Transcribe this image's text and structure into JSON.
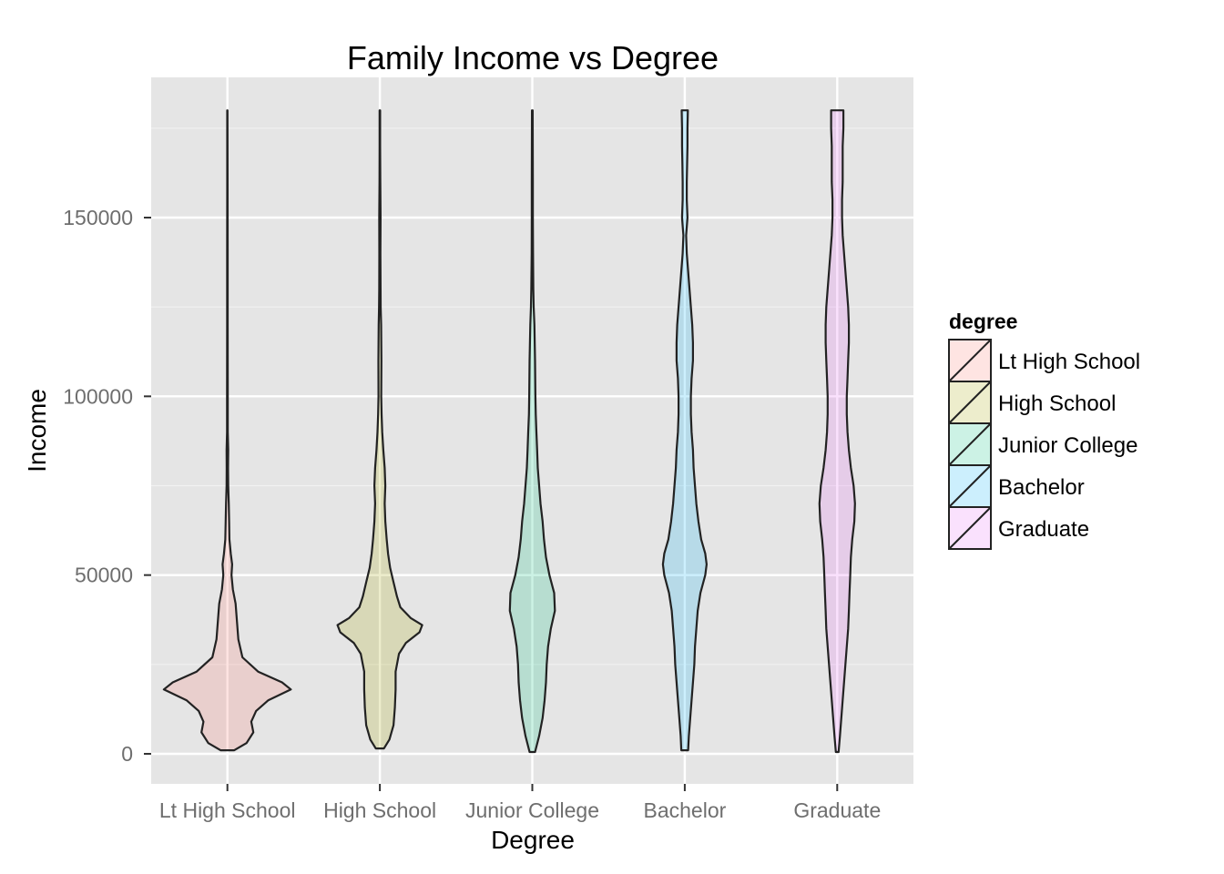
{
  "chart_data": {
    "type": "violin",
    "title": "Family Income vs Degree",
    "xlabel": "Degree",
    "ylabel": "Income",
    "categories": [
      "Lt High School",
      "High School",
      "Junior College",
      "Bachelor",
      "Graduate"
    ],
    "ylim": [
      -8000,
      182000
    ],
    "yticks": [
      0,
      50000,
      100000,
      150000
    ],
    "grid": true,
    "legend": {
      "title": "degree",
      "position": "right"
    },
    "series": [
      {
        "name": "Lt High School",
        "color": "#F8766D",
        "min": 1000,
        "max": 180000,
        "profile": [
          [
            1000,
            0.1
          ],
          [
            3000,
            0.28
          ],
          [
            6000,
            0.38
          ],
          [
            9000,
            0.35
          ],
          [
            12000,
            0.42
          ],
          [
            15000,
            0.6
          ],
          [
            18000,
            0.93
          ],
          [
            20000,
            0.8
          ],
          [
            23000,
            0.45
          ],
          [
            27000,
            0.22
          ],
          [
            32000,
            0.16
          ],
          [
            37000,
            0.14
          ],
          [
            42000,
            0.12
          ],
          [
            46000,
            0.08
          ],
          [
            50000,
            0.06
          ],
          [
            53000,
            0.07
          ],
          [
            56000,
            0.05
          ],
          [
            60000,
            0.03
          ],
          [
            65000,
            0.025
          ],
          [
            70000,
            0.02
          ],
          [
            75000,
            0.012
          ],
          [
            80000,
            0.01
          ],
          [
            85000,
            0.012
          ],
          [
            90000,
            0.006
          ],
          [
            100000,
            0.005
          ],
          [
            120000,
            0.004
          ],
          [
            140000,
            0.004
          ],
          [
            160000,
            0.003
          ],
          [
            180000,
            0.002
          ]
        ]
      },
      {
        "name": "High School",
        "color": "#A3A500",
        "min": 1500,
        "max": 180000,
        "profile": [
          [
            1500,
            0.06
          ],
          [
            4000,
            0.14
          ],
          [
            8000,
            0.2
          ],
          [
            13000,
            0.22
          ],
          [
            18000,
            0.23
          ],
          [
            23000,
            0.23
          ],
          [
            28000,
            0.28
          ],
          [
            31000,
            0.38
          ],
          [
            34000,
            0.58
          ],
          [
            36000,
            0.62
          ],
          [
            38000,
            0.45
          ],
          [
            41000,
            0.3
          ],
          [
            44000,
            0.25
          ],
          [
            48000,
            0.2
          ],
          [
            52000,
            0.15
          ],
          [
            56000,
            0.12
          ],
          [
            60000,
            0.1
          ],
          [
            65000,
            0.08
          ],
          [
            70000,
            0.07
          ],
          [
            75000,
            0.08
          ],
          [
            80000,
            0.07
          ],
          [
            85000,
            0.05
          ],
          [
            90000,
            0.035
          ],
          [
            95000,
            0.025
          ],
          [
            100000,
            0.02
          ],
          [
            110000,
            0.022
          ],
          [
            120000,
            0.018
          ],
          [
            125000,
            0.012
          ],
          [
            130000,
            0.01
          ],
          [
            140000,
            0.008
          ],
          [
            150000,
            0.01
          ],
          [
            160000,
            0.006
          ],
          [
            170000,
            0.004
          ],
          [
            180000,
            0.004
          ]
        ]
      },
      {
        "name": "Junior College",
        "color": "#00BF7D",
        "min": 500,
        "max": 180000,
        "profile": [
          [
            500,
            0.04
          ],
          [
            5000,
            0.1
          ],
          [
            10000,
            0.15
          ],
          [
            15000,
            0.18
          ],
          [
            20000,
            0.2
          ],
          [
            25000,
            0.21
          ],
          [
            30000,
            0.23
          ],
          [
            35000,
            0.27
          ],
          [
            40000,
            0.33
          ],
          [
            45000,
            0.32
          ],
          [
            50000,
            0.25
          ],
          [
            55000,
            0.2
          ],
          [
            60000,
            0.17
          ],
          [
            65000,
            0.15
          ],
          [
            70000,
            0.12
          ],
          [
            75000,
            0.1
          ],
          [
            80000,
            0.08
          ],
          [
            85000,
            0.07
          ],
          [
            90000,
            0.06
          ],
          [
            95000,
            0.05
          ],
          [
            100000,
            0.045
          ],
          [
            110000,
            0.04
          ],
          [
            120000,
            0.03
          ],
          [
            125000,
            0.02
          ],
          [
            130000,
            0.015
          ],
          [
            140000,
            0.01
          ],
          [
            150000,
            0.008
          ],
          [
            160000,
            0.008
          ],
          [
            170000,
            0.006
          ],
          [
            180000,
            0.005
          ]
        ]
      },
      {
        "name": "Bachelor",
        "color": "#00B0F6",
        "min": 1000,
        "max": 180000,
        "profile": [
          [
            1000,
            0.05
          ],
          [
            5000,
            0.06
          ],
          [
            10000,
            0.08
          ],
          [
            15000,
            0.1
          ],
          [
            20000,
            0.12
          ],
          [
            25000,
            0.14
          ],
          [
            30000,
            0.15
          ],
          [
            35000,
            0.17
          ],
          [
            40000,
            0.19
          ],
          [
            45000,
            0.23
          ],
          [
            50000,
            0.3
          ],
          [
            53000,
            0.32
          ],
          [
            56000,
            0.3
          ],
          [
            60000,
            0.24
          ],
          [
            65000,
            0.2
          ],
          [
            70000,
            0.17
          ],
          [
            75000,
            0.15
          ],
          [
            80000,
            0.13
          ],
          [
            85000,
            0.12
          ],
          [
            90000,
            0.1
          ],
          [
            95000,
            0.09
          ],
          [
            100000,
            0.09
          ],
          [
            105000,
            0.1
          ],
          [
            110000,
            0.12
          ],
          [
            115000,
            0.12
          ],
          [
            120000,
            0.11
          ],
          [
            125000,
            0.09
          ],
          [
            130000,
            0.07
          ],
          [
            135000,
            0.05
          ],
          [
            140000,
            0.03
          ],
          [
            145000,
            0.02
          ],
          [
            150000,
            0.04
          ],
          [
            155000,
            0.03
          ],
          [
            160000,
            0.03
          ],
          [
            165000,
            0.035
          ],
          [
            170000,
            0.04
          ],
          [
            175000,
            0.04
          ],
          [
            180000,
            0.045
          ]
        ]
      },
      {
        "name": "Graduate",
        "color": "#E76BF3",
        "min": 500,
        "max": 180000,
        "profile": [
          [
            500,
            0.02
          ],
          [
            5000,
            0.04
          ],
          [
            10000,
            0.06
          ],
          [
            15000,
            0.08
          ],
          [
            20000,
            0.1
          ],
          [
            25000,
            0.12
          ],
          [
            30000,
            0.14
          ],
          [
            35000,
            0.16
          ],
          [
            40000,
            0.17
          ],
          [
            45000,
            0.18
          ],
          [
            50000,
            0.19
          ],
          [
            55000,
            0.2
          ],
          [
            60000,
            0.22
          ],
          [
            65000,
            0.25
          ],
          [
            70000,
            0.26
          ],
          [
            75000,
            0.24
          ],
          [
            80000,
            0.2
          ],
          [
            85000,
            0.17
          ],
          [
            90000,
            0.15
          ],
          [
            95000,
            0.14
          ],
          [
            100000,
            0.14
          ],
          [
            105000,
            0.15
          ],
          [
            110000,
            0.16
          ],
          [
            115000,
            0.17
          ],
          [
            120000,
            0.17
          ],
          [
            125000,
            0.16
          ],
          [
            130000,
            0.14
          ],
          [
            135000,
            0.12
          ],
          [
            140000,
            0.1
          ],
          [
            145000,
            0.08
          ],
          [
            150000,
            0.07
          ],
          [
            155000,
            0.07
          ],
          [
            160000,
            0.08
          ],
          [
            165000,
            0.08
          ],
          [
            170000,
            0.08
          ],
          [
            175000,
            0.09
          ],
          [
            180000,
            0.09
          ]
        ]
      }
    ]
  }
}
